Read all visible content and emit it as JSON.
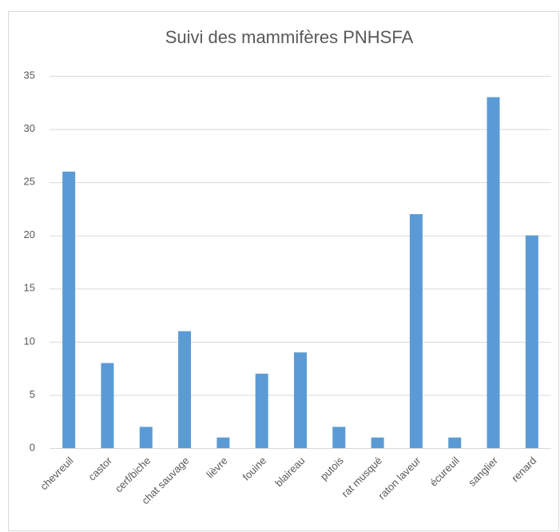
{
  "chart_data": {
    "type": "bar",
    "title": "Suivi des mammifères PNHSFA",
    "categories": [
      "chevreuil",
      "castor",
      "cerf/biche",
      "chat sauvage",
      "lièvre",
      "fouine",
      "blaireau",
      "putois",
      "rat musqué",
      "raton laveur",
      "écureuil",
      "sanglier",
      "renard"
    ],
    "values": [
      26,
      8,
      2,
      11,
      1,
      7,
      9,
      2,
      1,
      22,
      1,
      33,
      20
    ],
    "color": "#5b9bd5",
    "ylim": [
      0,
      35
    ],
    "yticks": [
      0,
      5,
      10,
      15,
      20,
      25,
      30,
      35
    ],
    "grid": true
  }
}
